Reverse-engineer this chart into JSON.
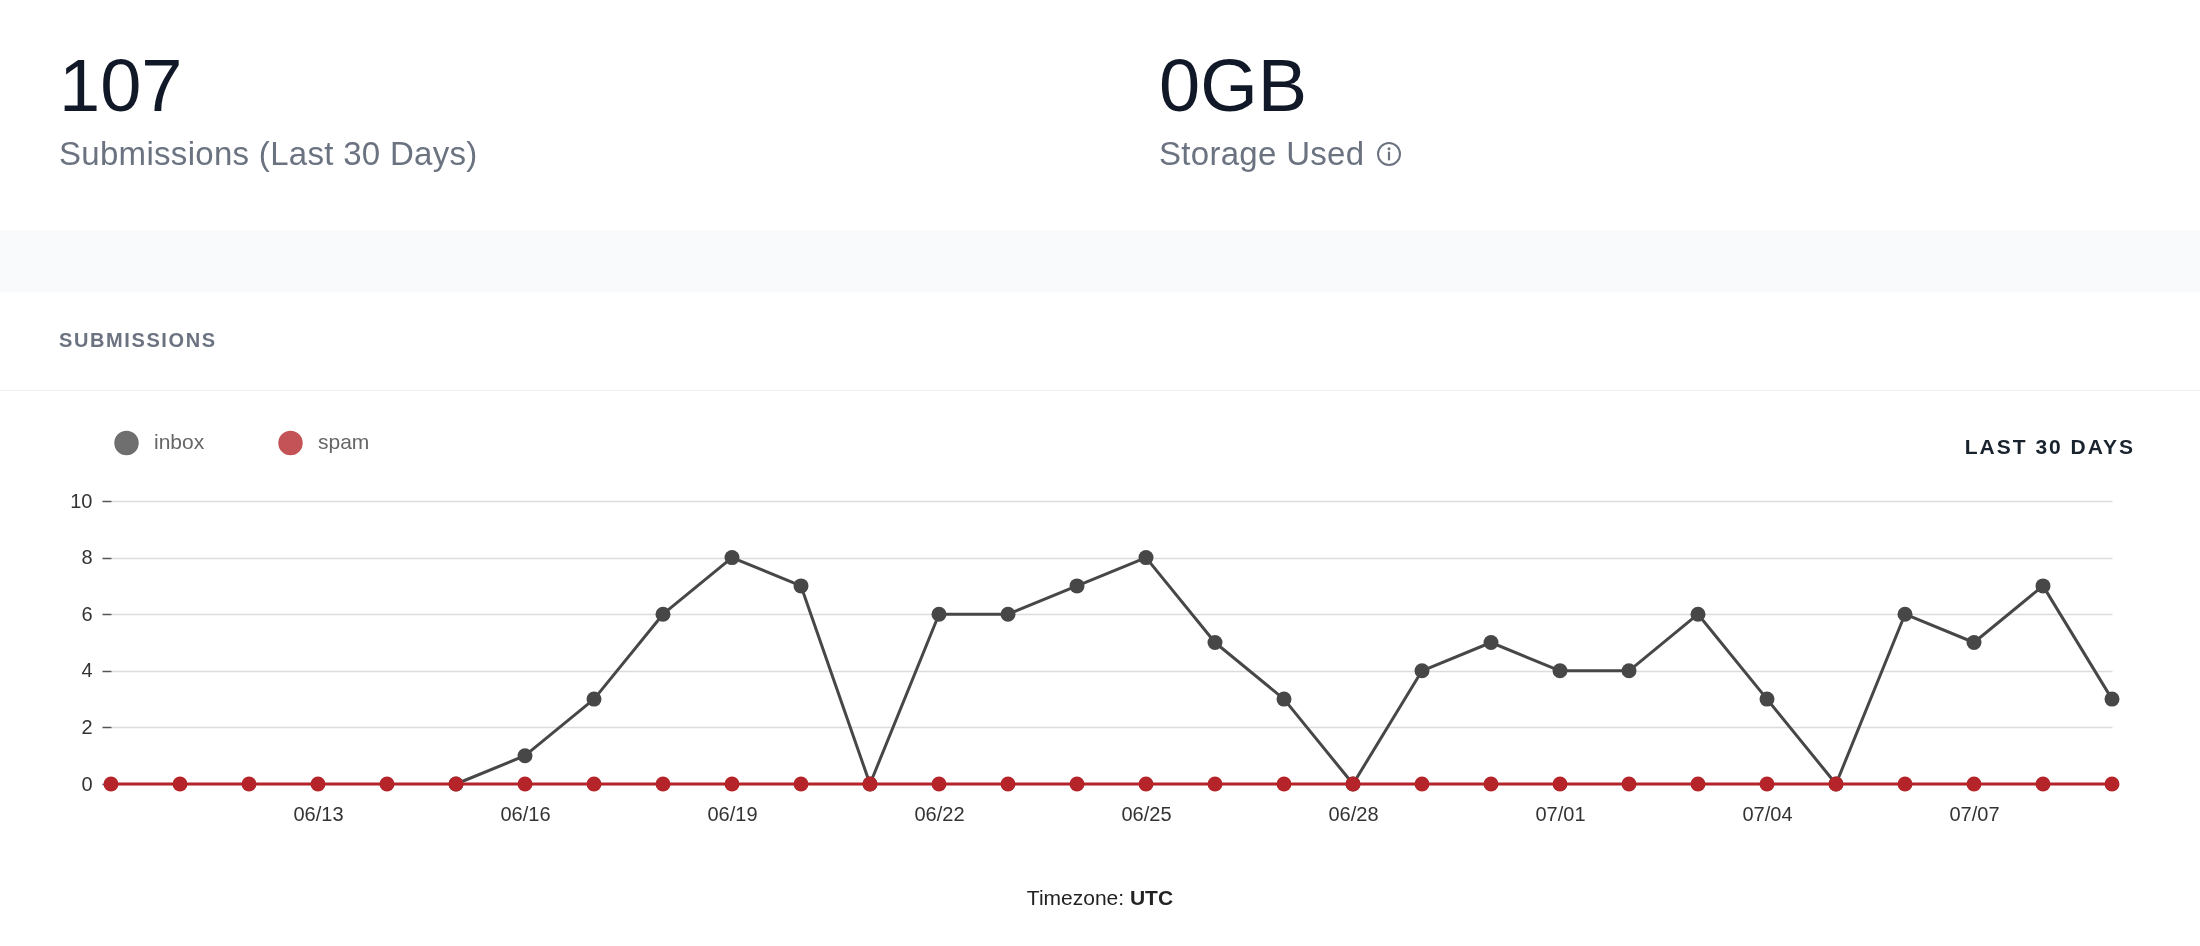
{
  "chart_data": [
    {
      "type": "other",
      "title": "107",
      "subtitle": "Submissions (Last 30 Days)"
    },
    {
      "type": "other",
      "title": "0GB",
      "subtitle": "Storage Used"
    },
    {
      "type": "line",
      "title": "SUBMISSIONS",
      "x": [
        "--06-10",
        "--06-11",
        "--06-12",
        "--06-13",
        "--06-14",
        "--06-15",
        "--06-16",
        "--06-17",
        "--06-18",
        "--06-19",
        "--06-20",
        "--06-21",
        "--06-22",
        "--06-23",
        "--06-24",
        "--06-25",
        "--06-26",
        "--06-27",
        "--06-28",
        "--06-29",
        "--06-30",
        "--07-01",
        "--07-02",
        "--07-03",
        "--07-04",
        "--07-05",
        "--07-06",
        "--07-07",
        "--07-08",
        "--07-09"
      ],
      "xlim": [
        "--06-10",
        "--07-09"
      ],
      "xticks": [
        {
          "value": "--06-13",
          "label": "06/13"
        },
        {
          "value": "--06-16",
          "label": "06/16"
        },
        {
          "value": "--06-19",
          "label": "06/19"
        },
        {
          "value": "--06-22",
          "label": "06/22"
        },
        {
          "value": "--06-25",
          "label": "06/25"
        },
        {
          "value": "--06-28",
          "label": "06/28"
        },
        {
          "value": "--07-01",
          "label": "07/01"
        },
        {
          "value": "--07-04",
          "label": "07/04"
        },
        {
          "value": "--07-07",
          "label": "07/07"
        }
      ],
      "ylim": [
        0,
        10
      ],
      "yticks": [
        0,
        2,
        4,
        6,
        8,
        10
      ],
      "series": [
        {
          "name": "inbox",
          "color": "#474747",
          "values": [
            null,
            null,
            null,
            null,
            null,
            0,
            1,
            3,
            6,
            8,
            7,
            0,
            6,
            6,
            7,
            8,
            5,
            3,
            0,
            4,
            5,
            4,
            4,
            6,
            3,
            0,
            6,
            5,
            7,
            3
          ]
        },
        {
          "name": "spam",
          "color": "#b42429",
          "values": [
            0,
            0,
            0,
            0,
            0,
            0,
            0,
            0,
            0,
            0,
            0,
            0,
            0,
            0,
            0,
            0,
            0,
            0,
            0,
            0,
            0,
            0,
            0,
            0,
            0,
            0,
            0,
            0,
            0,
            0
          ]
        }
      ],
      "grid": "y",
      "legend": "top left",
      "marker": "circle",
      "line_style": "solid",
      "annotations": [
        "LAST 30 DAYS",
        "Timezone: UTC"
      ]
    }
  ]
}
